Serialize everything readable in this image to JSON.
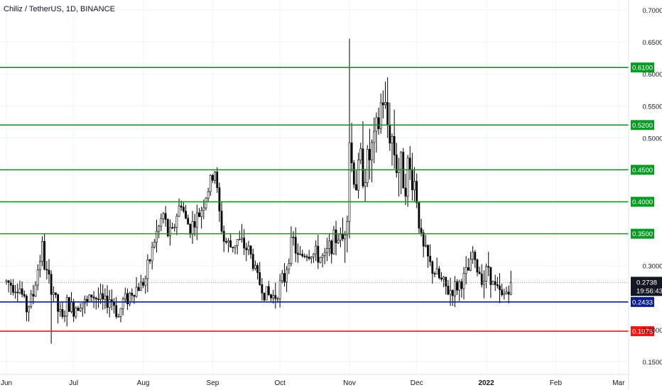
{
  "header": {
    "title": "Chiliz / TetherUS, 1D, BINANCE"
  },
  "chart_data": {
    "type": "candlestick",
    "title": "Chiliz / TetherUS, 1D, BINANCE",
    "ylim": [
      0.14,
      0.71
    ],
    "y_ticks": [
      "0.1500",
      "0.2000",
      "0.3000",
      "0.5000",
      "0.5500",
      "0.6000",
      "0.6500",
      "0.7000"
    ],
    "x_labels": [
      {
        "label": "Jun",
        "day": 0
      },
      {
        "label": "Jul",
        "day": 30
      },
      {
        "label": "Aug",
        "day": 61
      },
      {
        "label": "Sep",
        "day": 92
      },
      {
        "label": "Oct",
        "day": 122
      },
      {
        "label": "Nov",
        "day": 153
      },
      {
        "label": "Dec",
        "day": 183
      },
      {
        "label": "2022",
        "day": 214
      },
      {
        "label": "Feb",
        "day": 245
      },
      {
        "label": "Mar",
        "day": 273
      }
    ],
    "levels": [
      {
        "value": 0.61,
        "label": "0.6100",
        "color": "#089b24"
      },
      {
        "value": 0.52,
        "label": "0.5200",
        "color": "#089b24"
      },
      {
        "value": 0.45,
        "label": "0.4500",
        "color": "#089b24"
      },
      {
        "value": 0.4,
        "label": "0.4000",
        "color": "#089b24"
      },
      {
        "value": 0.35,
        "label": "0.3500",
        "color": "#089b24"
      },
      {
        "value": 0.2433,
        "label": "0.2433",
        "color": "#0a1e8c"
      },
      {
        "value": 0.1976,
        "label": "0.1976",
        "color": "#f01414"
      }
    ],
    "last_price": {
      "value": 0.2738,
      "label": "0.2738",
      "countdown": "19:56:43",
      "color": "#131722"
    },
    "anchors": [
      [
        0,
        0.275
      ],
      [
        3,
        0.27
      ],
      [
        6,
        0.265
      ],
      [
        9,
        0.232
      ],
      [
        12,
        0.255
      ],
      [
        14,
        0.295
      ],
      [
        16,
        0.33
      ],
      [
        17,
        0.3
      ],
      [
        19,
        0.275
      ],
      [
        21,
        0.26
      ],
      [
        23,
        0.23
      ],
      [
        25,
        0.215
      ],
      [
        27,
        0.24
      ],
      [
        30,
        0.232
      ],
      [
        33,
        0.245
      ],
      [
        36,
        0.24
      ],
      [
        38,
        0.255
      ],
      [
        40,
        0.25
      ],
      [
        42,
        0.245
      ],
      [
        44,
        0.24
      ],
      [
        46,
        0.25
      ],
      [
        48,
        0.24
      ],
      [
        50,
        0.22
      ],
      [
        52,
        0.245
      ],
      [
        54,
        0.25
      ],
      [
        56,
        0.26
      ],
      [
        58,
        0.265
      ],
      [
        60,
        0.27
      ],
      [
        62,
        0.28
      ],
      [
        64,
        0.31
      ],
      [
        66,
        0.34
      ],
      [
        68,
        0.36
      ],
      [
        70,
        0.38
      ],
      [
        72,
        0.35
      ],
      [
        74,
        0.35
      ],
      [
        76,
        0.38
      ],
      [
        78,
        0.4
      ],
      [
        80,
        0.37
      ],
      [
        82,
        0.36
      ],
      [
        84,
        0.37
      ],
      [
        86,
        0.38
      ],
      [
        88,
        0.4
      ],
      [
        90,
        0.42
      ],
      [
        92,
        0.44
      ],
      [
        93,
        0.45
      ],
      [
        95,
        0.38
      ],
      [
        97,
        0.34
      ],
      [
        100,
        0.33
      ],
      [
        103,
        0.34
      ],
      [
        106,
        0.33
      ],
      [
        108,
        0.325
      ],
      [
        110,
        0.305
      ],
      [
        112,
        0.28
      ],
      [
        115,
        0.26
      ],
      [
        118,
        0.25
      ],
      [
        120,
        0.255
      ],
      [
        122,
        0.27
      ],
      [
        124,
        0.28
      ],
      [
        126,
        0.32
      ],
      [
        128,
        0.34
      ],
      [
        130,
        0.31
      ],
      [
        133,
        0.32
      ],
      [
        136,
        0.32
      ],
      [
        139,
        0.315
      ],
      [
        142,
        0.31
      ],
      [
        144,
        0.33
      ],
      [
        146,
        0.34
      ],
      [
        148,
        0.345
      ],
      [
        150,
        0.34
      ],
      [
        152,
        0.4
      ],
      [
        153,
        0.5
      ],
      [
        154,
        0.46
      ],
      [
        156,
        0.43
      ],
      [
        158,
        0.46
      ],
      [
        160,
        0.45
      ],
      [
        162,
        0.47
      ],
      [
        164,
        0.49
      ],
      [
        166,
        0.52
      ],
      [
        167,
        0.55
      ],
      [
        168,
        0.56
      ],
      [
        169,
        0.54
      ],
      [
        170,
        0.52
      ],
      [
        172,
        0.5
      ],
      [
        174,
        0.46
      ],
      [
        176,
        0.45
      ],
      [
        178,
        0.44
      ],
      [
        179,
        0.45
      ],
      [
        181,
        0.44
      ],
      [
        182,
        0.43
      ],
      [
        183,
        0.41
      ],
      [
        184,
        0.38
      ],
      [
        185,
        0.33
      ],
      [
        187,
        0.32
      ],
      [
        189,
        0.3
      ],
      [
        191,
        0.29
      ],
      [
        194,
        0.275
      ],
      [
        197,
        0.26
      ],
      [
        200,
        0.265
      ],
      [
        203,
        0.275
      ],
      [
        205,
        0.285
      ],
      [
        207,
        0.3
      ],
      [
        208,
        0.32
      ],
      [
        209,
        0.3
      ],
      [
        211,
        0.29
      ],
      [
        213,
        0.28
      ],
      [
        215,
        0.3
      ],
      [
        217,
        0.27
      ],
      [
        219,
        0.26
      ],
      [
        221,
        0.25
      ],
      [
        223,
        0.26
      ],
      [
        225,
        0.2738
      ]
    ]
  }
}
